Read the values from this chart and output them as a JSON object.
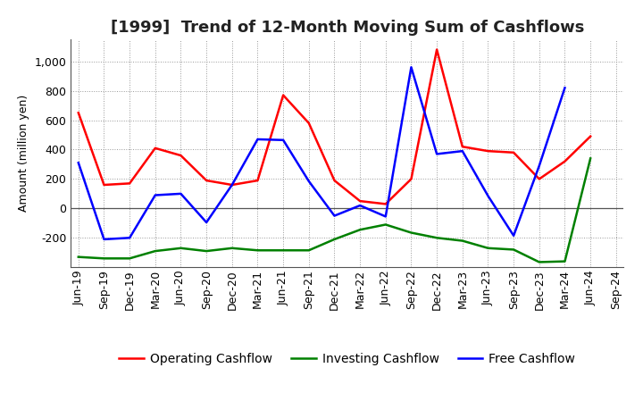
{
  "title": "[1999]  Trend of 12-Month Moving Sum of Cashflows",
  "ylabel": "Amount (million yen)",
  "ylim": [
    -400,
    1150
  ],
  "yticks": [
    -200,
    0,
    200,
    400,
    600,
    800,
    1000
  ],
  "labels": [
    "Jun-19",
    "Sep-19",
    "Dec-19",
    "Mar-20",
    "Jun-20",
    "Sep-20",
    "Dec-20",
    "Mar-21",
    "Jun-21",
    "Sep-21",
    "Dec-21",
    "Mar-22",
    "Jun-22",
    "Sep-22",
    "Dec-22",
    "Mar-23",
    "Jun-23",
    "Sep-23",
    "Dec-23",
    "Mar-24",
    "Jun-24",
    "Sep-24"
  ],
  "operating": [
    650,
    160,
    170,
    410,
    360,
    190,
    160,
    190,
    770,
    580,
    190,
    50,
    30,
    200,
    1080,
    420,
    390,
    380,
    200,
    320,
    490,
    null
  ],
  "investing": [
    -330,
    -340,
    -340,
    -290,
    -270,
    -290,
    -270,
    -285,
    -285,
    -285,
    -210,
    -145,
    -110,
    -165,
    -200,
    -220,
    -270,
    -280,
    -365,
    -360,
    340,
    null
  ],
  "free": [
    310,
    -210,
    -200,
    90,
    100,
    -95,
    160,
    470,
    465,
    185,
    -50,
    20,
    -55,
    960,
    370,
    390,
    85,
    -185,
    290,
    820,
    null,
    null
  ],
  "operating_color": "#ff0000",
  "investing_color": "#008000",
  "free_color": "#0000ff",
  "background_color": "#ffffff",
  "grid_color": "#999999",
  "title_fontsize": 13,
  "axis_fontsize": 9,
  "legend_fontsize": 10,
  "line_width": 1.8
}
